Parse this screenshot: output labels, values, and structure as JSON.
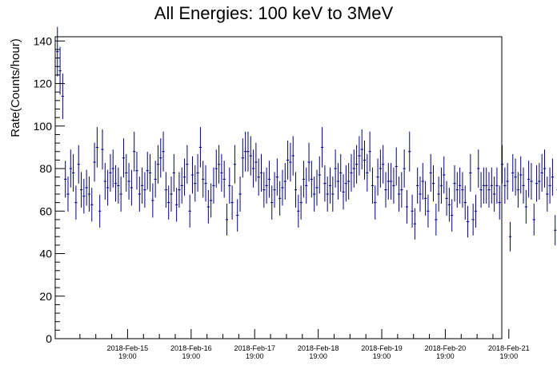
{
  "chart_data": {
    "type": "scatter",
    "title": "All Energies:  100 keV to 3MeV",
    "xlabel": "",
    "ylabel": "Rate(Counts/hour)",
    "ylim": [
      0,
      142
    ],
    "xlim": [
      "2018-02-14T15:40",
      "2018-02-21T16:20"
    ],
    "y_ticks": [
      0,
      20,
      40,
      60,
      80,
      100,
      120,
      140
    ],
    "x_ticks": [
      {
        "date": "2018-Feb-15",
        "time": "19:00",
        "t": "2018-02-15T19:00"
      },
      {
        "date": "2018-Feb-16",
        "time": "19:00",
        "t": "2018-02-16T19:00"
      },
      {
        "date": "2018-Feb-17",
        "time": "19:00",
        "t": "2018-02-17T19:00"
      },
      {
        "date": "2018-Feb-18",
        "time": "19:00",
        "t": "2018-02-18T19:00"
      },
      {
        "date": "2018-Feb-19",
        "time": "19:00",
        "t": "2018-02-19T19:00"
      },
      {
        "date": "2018-Feb-20",
        "time": "19:00",
        "t": "2018-02-20T19:00"
      },
      {
        "date": "2018-Feb-21",
        "time": "19:00",
        "t": "2018-02-21T19:00"
      }
    ],
    "grid": false,
    "marker_color": "#00007f",
    "series": [
      {
        "x_start": "2018-02-14T16:00",
        "bin_hours": 1,
        "y": [
          135,
          126,
          114,
          75,
          68,
          80,
          78,
          64,
          82,
          70,
          67,
          71,
          68,
          63,
          83,
          90,
          60,
          89,
          74,
          71,
          78,
          80,
          73,
          72,
          68,
          85,
          78,
          74,
          71,
          88,
          79,
          68,
          72,
          70,
          79,
          78,
          65,
          75,
          82,
          85,
          88,
          70,
          64,
          68,
          78,
          63,
          70,
          72,
          76,
          82,
          60,
          77,
          73,
          78,
          90,
          75,
          73,
          62,
          65,
          72,
          80,
          82,
          78,
          75,
          56,
          72,
          64,
          82,
          58,
          68,
          85,
          88,
          88,
          86,
          80,
          83,
          76,
          78,
          70,
          72,
          75,
          64,
          70,
          76,
          66,
          71,
          74,
          84,
          83,
          86,
          70,
          60,
          64,
          75,
          72,
          83,
          75,
          68,
          71,
          77,
          90,
          73,
          68,
          72,
          68,
          80,
          74,
          78,
          69,
          73,
          74,
          78,
          80,
          82,
          86,
          89,
          84,
          78,
          88,
          72,
          64,
          76,
          80,
          82,
          70,
          74,
          74,
          72,
          81,
          68,
          70,
          80,
          62,
          88,
          60,
          54,
          72,
          68,
          74,
          66,
          60,
          78,
          73,
          56,
          68,
          72,
          77,
          66,
          63,
          58,
          73,
          70,
          72,
          70,
          64,
          55,
          78,
          56,
          60,
          80,
          70,
          72,
          72,
          70,
          72,
          68,
          72,
          64,
          82,
          72,
          74,
          48,
          78,
          76,
          70,
          77,
          72,
          62,
          75,
          74,
          56,
          73,
          74,
          78,
          80,
          68,
          72,
          76,
          51,
          70,
          74,
          66,
          72,
          80,
          80,
          65,
          74,
          78,
          75,
          73,
          60,
          62,
          55,
          72,
          62,
          70,
          60,
          67,
          62,
          70,
          64,
          71,
          58,
          76,
          82,
          80,
          86,
          68,
          78,
          83,
          80,
          70,
          84,
          72,
          81,
          65,
          64,
          58,
          64,
          70,
          75,
          80,
          78,
          76,
          80,
          84,
          70,
          73,
          76,
          80,
          88,
          66,
          84,
          65,
          72,
          74,
          68,
          70,
          60,
          64,
          86,
          58,
          74,
          70,
          67,
          78,
          73,
          70,
          74,
          78,
          60,
          52,
          52,
          86,
          72
        ]
      }
    ]
  }
}
